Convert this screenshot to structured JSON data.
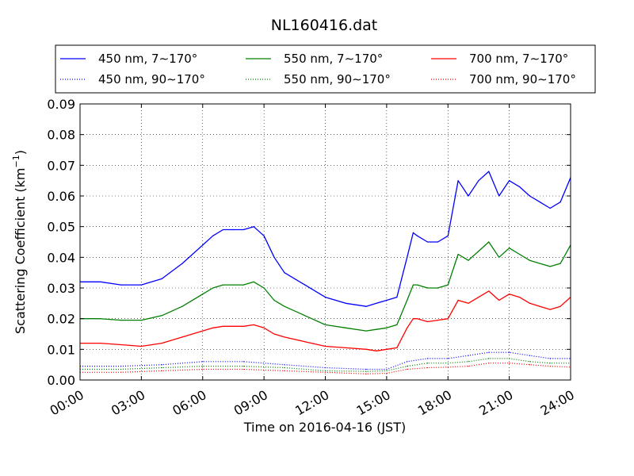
{
  "chart_data": {
    "type": "line",
    "title": "NL160416.dat",
    "xlabel": "Time on 2016-04-16 (JST)",
    "ylabel": "Scattering Coefficient (km",
    "ylabel_sup": "−1",
    "ylabel_tail": ")",
    "x_ticks": [
      "00:00",
      "03:00",
      "06:00",
      "09:00",
      "12:00",
      "15:00",
      "18:00",
      "21:00",
      "24:00"
    ],
    "x_tick_hours": [
      0,
      3,
      6,
      9,
      12,
      15,
      18,
      21,
      24
    ],
    "y_ticks": [
      "0.00",
      "0.01",
      "0.02",
      "0.03",
      "0.04",
      "0.05",
      "0.06",
      "0.07",
      "0.08",
      "0.09"
    ],
    "xlim_hours": [
      0,
      24
    ],
    "ylim": [
      0,
      0.09
    ],
    "grid": true,
    "legend_placement": "above-plot",
    "series": [
      {
        "name": "450 nm, 7∼170°",
        "color": "#0000ff",
        "style": "solid",
        "x": [
          0,
          1,
          2,
          3,
          4,
          5,
          6,
          6.5,
          7,
          7.5,
          8,
          8.5,
          9,
          9.5,
          10,
          11,
          12,
          13,
          14,
          14.5,
          15,
          15.5,
          16,
          16.3,
          16.5,
          17,
          17.5,
          18,
          18.5,
          19,
          19.5,
          20,
          20.5,
          21,
          21.5,
          22,
          22.5,
          23,
          23.5,
          24
        ],
        "values": [
          0.032,
          0.032,
          0.031,
          0.031,
          0.033,
          0.038,
          0.044,
          0.047,
          0.049,
          0.049,
          0.049,
          0.05,
          0.047,
          0.04,
          0.035,
          0.031,
          0.027,
          0.025,
          0.024,
          0.025,
          0.026,
          0.027,
          0.04,
          0.048,
          0.047,
          0.045,
          0.045,
          0.047,
          0.065,
          0.06,
          0.065,
          0.068,
          0.06,
          0.065,
          0.063,
          0.06,
          0.058,
          0.056,
          0.058,
          0.066
        ]
      },
      {
        "name": "550 nm, 7∼170°",
        "color": "#008000",
        "style": "solid",
        "x": [
          0,
          1,
          2,
          3,
          4,
          5,
          6,
          6.5,
          7,
          7.5,
          8,
          8.5,
          9,
          9.5,
          10,
          11,
          12,
          13,
          14,
          14.5,
          15,
          15.5,
          16,
          16.3,
          16.5,
          17,
          17.5,
          18,
          18.5,
          19,
          19.5,
          20,
          20.5,
          21,
          21.5,
          22,
          22.5,
          23,
          23.5,
          24
        ],
        "values": [
          0.02,
          0.02,
          0.0195,
          0.0195,
          0.021,
          0.024,
          0.028,
          0.03,
          0.031,
          0.031,
          0.031,
          0.032,
          0.03,
          0.026,
          0.024,
          0.021,
          0.018,
          0.017,
          0.016,
          0.0165,
          0.017,
          0.018,
          0.026,
          0.031,
          0.031,
          0.03,
          0.03,
          0.031,
          0.041,
          0.039,
          0.042,
          0.045,
          0.04,
          0.043,
          0.041,
          0.039,
          0.038,
          0.037,
          0.038,
          0.044
        ]
      },
      {
        "name": "700 nm, 7∼170°",
        "color": "#ff0000",
        "style": "solid",
        "x": [
          0,
          1,
          2,
          3,
          4,
          5,
          6,
          6.5,
          7,
          7.5,
          8,
          8.5,
          9,
          9.5,
          10,
          11,
          12,
          13,
          14,
          14.5,
          15,
          15.5,
          16,
          16.3,
          16.5,
          17,
          17.5,
          18,
          18.5,
          19,
          19.5,
          20,
          20.5,
          21,
          21.5,
          22,
          22.5,
          23,
          23.5,
          24
        ],
        "values": [
          0.012,
          0.012,
          0.0115,
          0.011,
          0.012,
          0.014,
          0.016,
          0.017,
          0.0175,
          0.0175,
          0.0175,
          0.018,
          0.017,
          0.015,
          0.014,
          0.0125,
          0.011,
          0.0105,
          0.01,
          0.0095,
          0.01,
          0.0105,
          0.017,
          0.02,
          0.02,
          0.019,
          0.0195,
          0.02,
          0.026,
          0.025,
          0.027,
          0.029,
          0.026,
          0.028,
          0.027,
          0.025,
          0.024,
          0.023,
          0.024,
          0.027
        ]
      },
      {
        "name": "450 nm, 90∼170°",
        "color": "#0000ff",
        "style": "dotted",
        "x": [
          0,
          2,
          4,
          6,
          8,
          10,
          12,
          14,
          15,
          16,
          17,
          18,
          19,
          20,
          21,
          22,
          23,
          24
        ],
        "values": [
          0.0045,
          0.0045,
          0.005,
          0.006,
          0.006,
          0.005,
          0.004,
          0.0035,
          0.0035,
          0.006,
          0.007,
          0.007,
          0.008,
          0.009,
          0.009,
          0.008,
          0.007,
          0.007
        ]
      },
      {
        "name": "550 nm, 90∼170°",
        "color": "#008000",
        "style": "dotted",
        "x": [
          0,
          2,
          4,
          6,
          8,
          10,
          12,
          14,
          15,
          16,
          17,
          18,
          19,
          20,
          21,
          22,
          23,
          24
        ],
        "values": [
          0.0035,
          0.0035,
          0.004,
          0.0045,
          0.0045,
          0.004,
          0.003,
          0.0028,
          0.003,
          0.0045,
          0.0055,
          0.0055,
          0.006,
          0.007,
          0.007,
          0.006,
          0.0055,
          0.0055
        ]
      },
      {
        "name": "700 nm, 90∼170°",
        "color": "#ff0000",
        "style": "dotted",
        "x": [
          0,
          2,
          4,
          6,
          8,
          10,
          12,
          14,
          15,
          16,
          17,
          18,
          19,
          20,
          21,
          22,
          23,
          24
        ],
        "values": [
          0.0025,
          0.0025,
          0.003,
          0.0035,
          0.0035,
          0.003,
          0.0025,
          0.002,
          0.0022,
          0.0035,
          0.004,
          0.0042,
          0.0045,
          0.0055,
          0.0055,
          0.005,
          0.0045,
          0.0042
        ]
      }
    ]
  }
}
